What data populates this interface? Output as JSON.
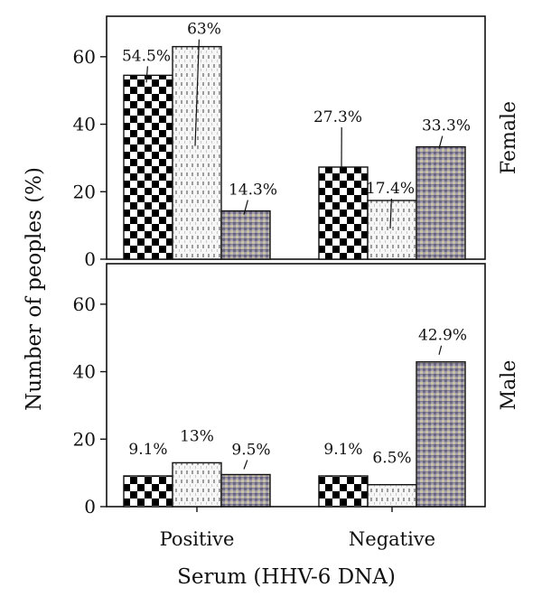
{
  "chart_data": {
    "type": "bar",
    "xlabel": "Serum (HHV-6 DNA)",
    "ylabel": "Number of peoples (%)",
    "categories": [
      "Positive",
      "Negative"
    ],
    "ylim": [
      0,
      72
    ],
    "yticks": [
      0,
      20,
      40,
      60
    ],
    "grid": false,
    "legend": "none",
    "panels": [
      {
        "label": "Female",
        "series": [
          {
            "values": [
              54.5,
              27.3
            ],
            "labels": [
              "54.5%",
              "27.3%"
            ]
          },
          {
            "values": [
              63,
              17.4
            ],
            "labels": [
              "63%",
              "17.4%"
            ]
          },
          {
            "values": [
              14.3,
              33.3
            ],
            "labels": [
              "14.3%",
              "33.3%"
            ]
          }
        ]
      },
      {
        "label": "Male",
        "series": [
          {
            "values": [
              9.1,
              9.1
            ],
            "labels": [
              "9.1%",
              "9.1%"
            ]
          },
          {
            "values": [
              13,
              6.5
            ],
            "labels": [
              "13%",
              "6.5%"
            ]
          },
          {
            "values": [
              9.5,
              42.9
            ],
            "labels": [
              "9.5%",
              "42.9%"
            ]
          }
        ]
      }
    ]
  }
}
